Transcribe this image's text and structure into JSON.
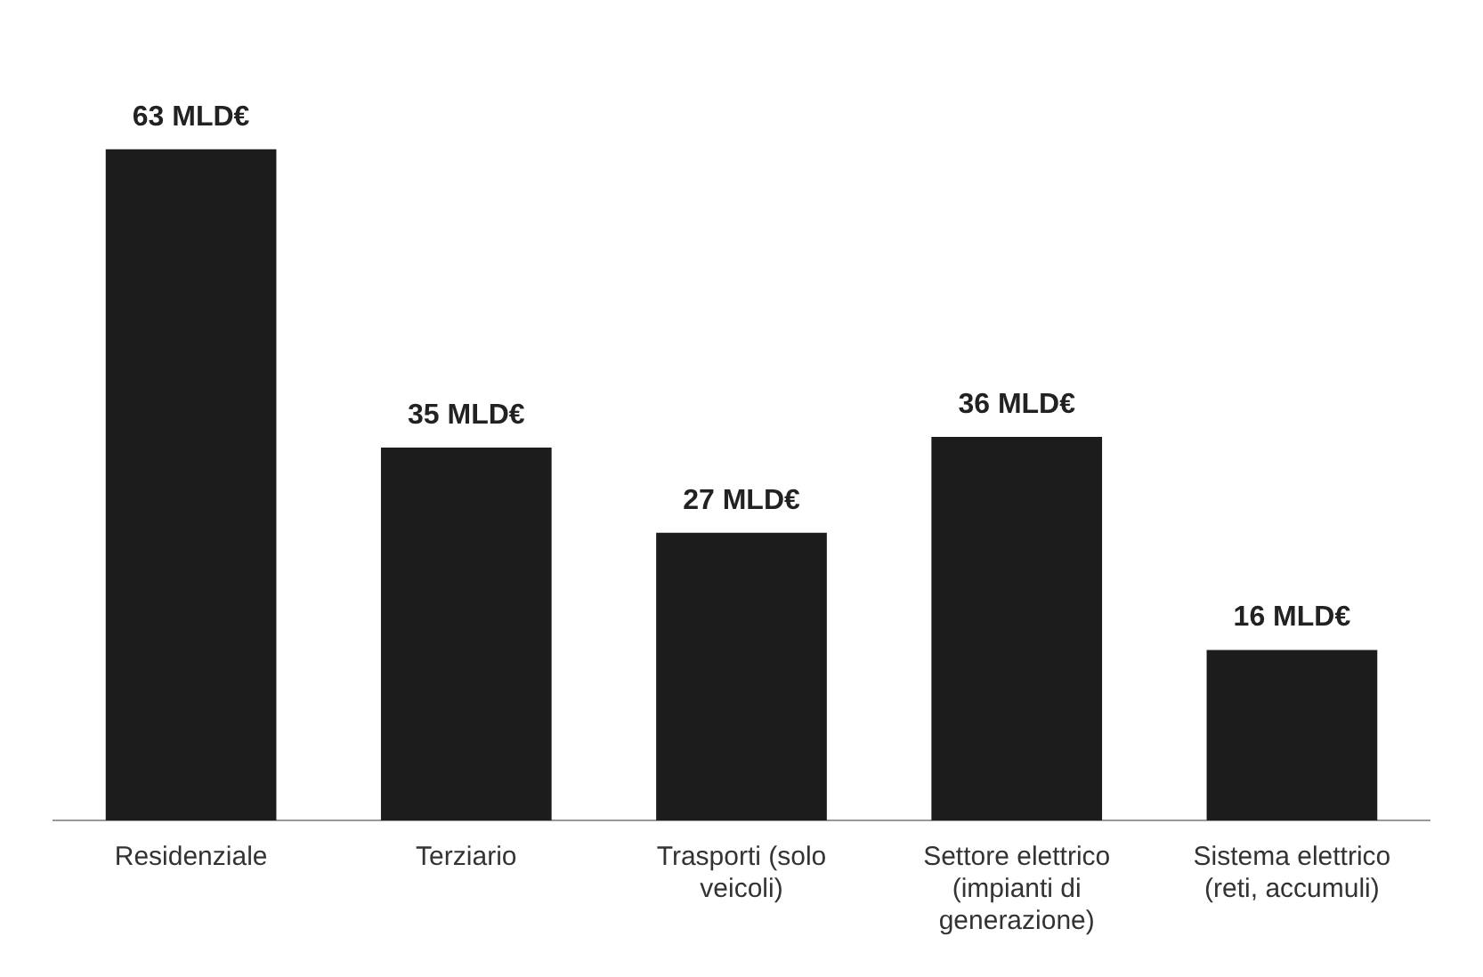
{
  "chart_data": {
    "type": "bar",
    "categories": [
      "Residenziale",
      "Terziario",
      "Trasporti (solo veicoli)",
      "Settore elettrico (impianti di generazione)",
      "Sistema elettrico (reti, accumuli)"
    ],
    "values": [
      63,
      35,
      27,
      36,
      16
    ],
    "color": "#1c1c1c",
    "value_labels": [
      "63 MLD€",
      "35 MLD€",
      "27 MLD€",
      "36 MLD€",
      "16 MLD€"
    ],
    "grid": false,
    "legend": false
  }
}
